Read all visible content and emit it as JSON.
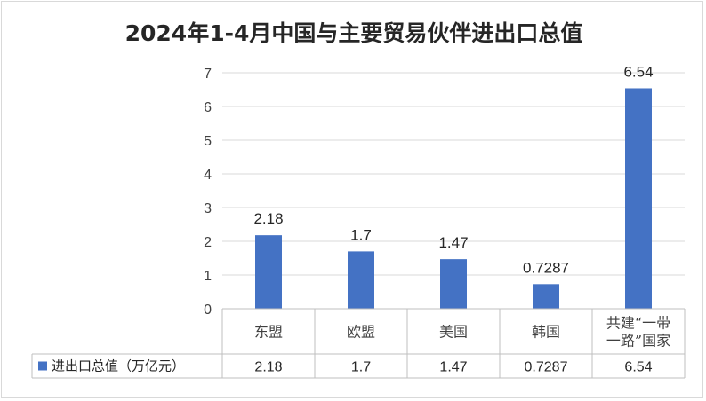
{
  "chart_data": {
    "type": "bar",
    "title": "2024年1-4月中国与主要贸易伙伴进出口总值",
    "categories": [
      "东盟",
      "欧盟",
      "美国",
      "韩国",
      "共建“一带一路”国家"
    ],
    "category_lines": [
      [
        "东盟"
      ],
      [
        "欧盟"
      ],
      [
        "美国"
      ],
      [
        "韩国"
      ],
      [
        "共建“一带",
        "一路”国家"
      ]
    ],
    "series": [
      {
        "name": "进出口总值（万亿元）",
        "values": [
          2.18,
          1.7,
          1.47,
          0.7287,
          6.54
        ],
        "labels": [
          "2.18",
          "1.7",
          "1.47",
          "0.7287",
          "6.54"
        ],
        "color": "#4472c4"
      }
    ],
    "ylim": [
      0,
      7
    ],
    "yticks": [
      0,
      1,
      2,
      3,
      4,
      5,
      6,
      7
    ],
    "grid": true,
    "data_table": true,
    "legend_placement": "in-table-left"
  }
}
